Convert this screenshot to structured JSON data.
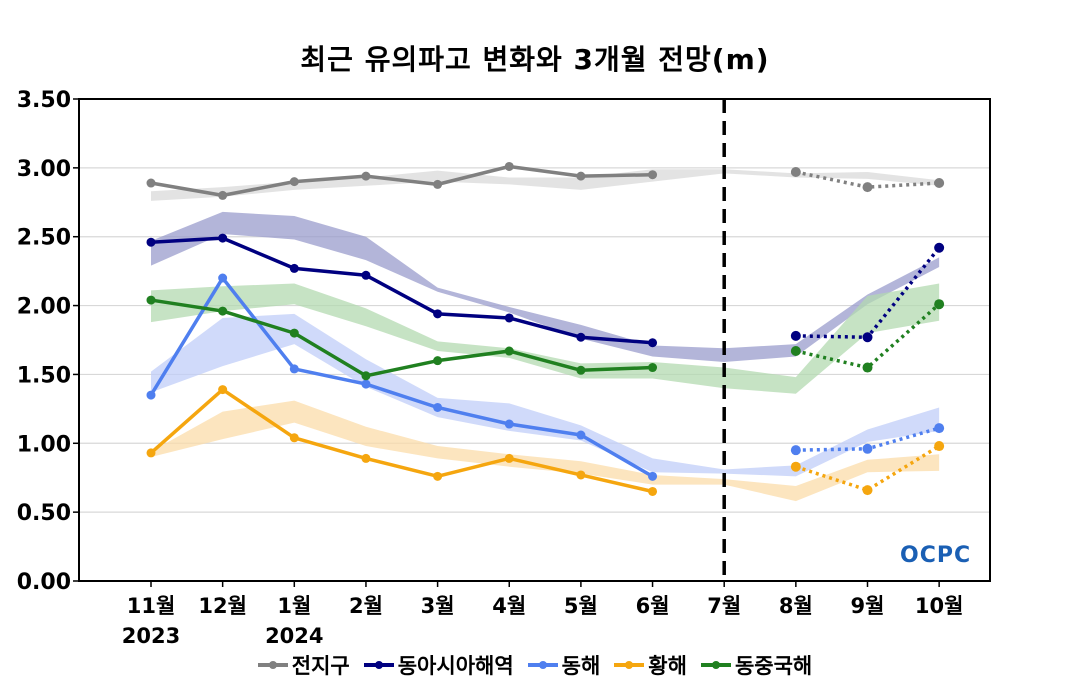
{
  "chart_data": {
    "type": "line",
    "title": "최근 유의파고 변화와 3개월 전망(m)",
    "xlabel": "",
    "ylabel": "",
    "ylim": [
      0,
      3.5
    ],
    "yticks": [
      "0.00",
      "0.50",
      "1.00",
      "1.50",
      "2.00",
      "2.50",
      "3.00",
      "3.50"
    ],
    "categories": [
      "11월",
      "12월",
      "1월",
      "2월",
      "3월",
      "4월",
      "5월",
      "6월",
      "7월",
      "8월",
      "9월",
      "10월"
    ],
    "year_labels": [
      {
        "index": 0,
        "label": "2023"
      },
      {
        "index": 2,
        "label": "2024"
      }
    ],
    "divider_at": "7월",
    "grid": true,
    "legend_position": "bottom",
    "series": [
      {
        "name": "전지구",
        "color": "#808080",
        "band_color": "#d9d9d9",
        "observed": [
          2.89,
          2.8,
          2.9,
          2.94,
          2.88,
          3.01,
          2.94,
          2.95,
          null,
          null,
          null,
          null
        ],
        "forecast": [
          null,
          null,
          null,
          null,
          null,
          null,
          null,
          null,
          null,
          2.97,
          2.86,
          2.89
        ],
        "band_upper": [
          2.83,
          2.86,
          2.9,
          2.93,
          2.98,
          2.93,
          2.93,
          2.99,
          2.99,
          2.96,
          2.97,
          2.91
        ],
        "band_lower": [
          2.76,
          2.79,
          2.84,
          2.87,
          2.9,
          2.88,
          2.84,
          2.9,
          2.96,
          2.93,
          2.92,
          2.87
        ]
      },
      {
        "name": "동아시아해역",
        "color": "#000080",
        "band_color": "#9a9ccc",
        "observed": [
          2.46,
          2.49,
          2.27,
          2.22,
          1.94,
          1.91,
          1.77,
          1.73,
          null,
          null,
          null,
          null
        ],
        "forecast": [
          null,
          null,
          null,
          null,
          null,
          null,
          null,
          null,
          null,
          1.78,
          1.77,
          2.42
        ],
        "band_upper": [
          2.47,
          2.68,
          2.65,
          2.5,
          2.13,
          1.99,
          1.86,
          1.71,
          1.69,
          1.72,
          2.08,
          2.35
        ],
        "band_lower": [
          2.29,
          2.52,
          2.48,
          2.33,
          2.1,
          1.95,
          1.76,
          1.63,
          1.59,
          1.63,
          2.01,
          2.28
        ]
      },
      {
        "name": "동해",
        "color": "#4f7fef",
        "band_color": "#c0cef8",
        "observed": [
          1.35,
          2.2,
          1.54,
          1.43,
          1.26,
          1.14,
          1.06,
          0.76,
          null,
          null,
          null,
          null
        ],
        "forecast": [
          null,
          null,
          null,
          null,
          null,
          null,
          null,
          null,
          null,
          0.95,
          0.96,
          1.11
        ],
        "band_upper": [
          1.52,
          1.91,
          1.94,
          1.61,
          1.33,
          1.29,
          1.13,
          0.89,
          0.81,
          0.84,
          1.1,
          1.26
        ],
        "band_lower": [
          1.37,
          1.56,
          1.72,
          1.41,
          1.19,
          1.09,
          1.02,
          0.79,
          0.78,
          0.76,
          1.01,
          1.09
        ]
      },
      {
        "name": "황해",
        "color": "#f5a60f",
        "band_color": "#fbdcaa",
        "observed": [
          0.93,
          1.39,
          1.04,
          0.89,
          0.76,
          0.89,
          0.77,
          0.65,
          null,
          null,
          null,
          null
        ],
        "forecast": [
          null,
          null,
          null,
          null,
          null,
          null,
          null,
          null,
          null,
          0.83,
          0.66,
          0.98
        ],
        "band_upper": [
          0.94,
          1.23,
          1.31,
          1.12,
          0.98,
          0.92,
          0.87,
          0.77,
          0.74,
          0.69,
          0.88,
          0.92
        ],
        "band_lower": [
          0.9,
          1.03,
          1.15,
          0.98,
          0.89,
          0.83,
          0.78,
          0.7,
          0.7,
          0.58,
          0.79,
          0.8
        ]
      },
      {
        "name": "동중국해",
        "color": "#208020",
        "band_color": "#b3d9b0",
        "observed": [
          2.04,
          1.96,
          1.8,
          1.49,
          1.6,
          1.67,
          1.53,
          1.55,
          null,
          null,
          null,
          null
        ],
        "forecast": [
          null,
          null,
          null,
          null,
          null,
          null,
          null,
          null,
          null,
          1.67,
          1.55,
          2.01
        ],
        "band_upper": [
          2.11,
          2.14,
          2.16,
          1.98,
          1.74,
          1.69,
          1.58,
          1.59,
          1.55,
          1.48,
          2.07,
          2.16
        ],
        "band_lower": [
          1.88,
          1.96,
          2.01,
          1.85,
          1.67,
          1.62,
          1.47,
          1.47,
          1.4,
          1.36,
          1.8,
          1.89
        ]
      }
    ]
  },
  "logo": {
    "text": "OCPC"
  }
}
